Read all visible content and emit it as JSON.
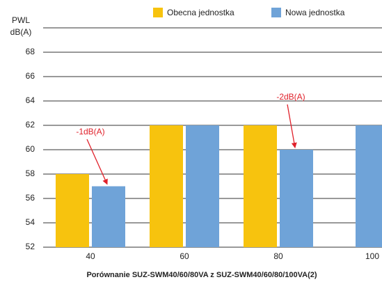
{
  "chart_data": {
    "type": "bar",
    "categories": [
      "40",
      "60",
      "80",
      "100"
    ],
    "series": [
      {
        "name": "Obecna jednostka",
        "color": "#f7c30e",
        "values": [
          58,
          62,
          62,
          null
        ]
      },
      {
        "name": "Nowa jednostka",
        "color": "#6fa3d8",
        "values": [
          57,
          62,
          60,
          62
        ]
      }
    ],
    "y_label": [
      "PWL",
      "dB(A)"
    ],
    "x_label": "Porównanie SUZ-SWM40/60/80VA z SUZ-SWM40/60/80/100VA(2)",
    "annotations": [
      "-1dB(A)",
      "-2dB(A)"
    ],
    "ylim": [
      52,
      70
    ],
    "yticks": [
      52,
      54,
      56,
      58,
      60,
      62,
      64,
      66,
      68
    ],
    "grid": true
  }
}
